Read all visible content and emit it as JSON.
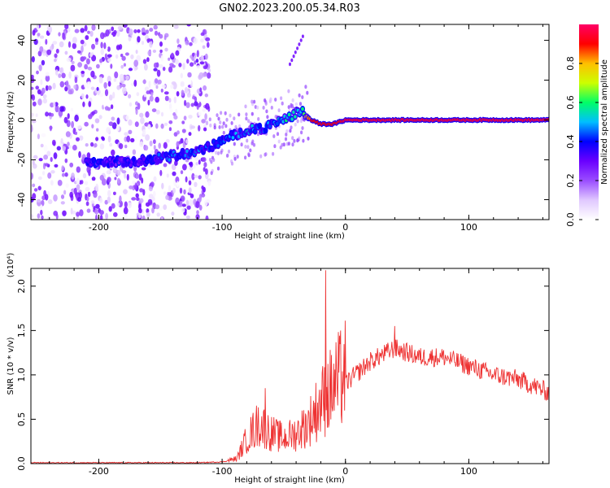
{
  "title": "GN02.2023.200.05.34.R03",
  "colors": {
    "snr_line": "#ee3333",
    "frame": "#000000",
    "colormap": [
      "#ffffff",
      "#e0c8ff",
      "#9a4dff",
      "#6a00ff",
      "#0000ff",
      "#00bfff",
      "#00ff66",
      "#ccff00",
      "#ffbf00",
      "#ff0000",
      "#ff0066"
    ]
  },
  "chart_data": [
    {
      "type": "heatmap",
      "name": "spectrogram",
      "xlabel": "Height of straight line (km)",
      "ylabel": "Frequency (Hz)",
      "xlim": [
        -255,
        165
      ],
      "ylim": [
        -50,
        48
      ],
      "xticks": [
        -200,
        -100,
        0,
        100
      ],
      "xtick_labels": [
        "-200",
        "-100",
        "0",
        "100"
      ],
      "yticks": [
        -40,
        -20,
        0,
        20,
        40
      ],
      "ytick_labels": [
        "-40",
        "-20",
        "0",
        "20",
        "40"
      ],
      "colorbar": {
        "label": "Normalized spectral amplitude",
        "range": [
          0,
          1
        ],
        "ticks": [
          0.0,
          0.2,
          0.4,
          0.6,
          0.8
        ],
        "tick_labels": [
          "0.0",
          "0.2",
          "0.4",
          "0.6",
          "0.8"
        ]
      },
      "ridge": {
        "x": [
          -200,
          -170,
          -140,
          -120,
          -105,
          -95,
          -80,
          -65,
          -50,
          -35,
          -28,
          -20,
          -10,
          0,
          50,
          100,
          165
        ],
        "y": [
          -21,
          -21,
          -18,
          -16,
          -12,
          -9,
          -5,
          -4,
          0,
          5,
          0,
          -2,
          -2,
          0,
          0,
          0,
          0
        ],
        "amplitude": [
          0.25,
          0.25,
          0.35,
          0.35,
          0.3,
          0.35,
          0.4,
          0.35,
          0.45,
          0.45,
          0.9,
          0.9,
          0.9,
          0.95,
          0.95,
          0.95,
          0.95
        ]
      },
      "noise_region_x": [
        -255,
        -110
      ]
    },
    {
      "type": "line",
      "name": "snr",
      "xlabel": "Height of straight line (km)",
      "ylabel": "SNR (10 * v/v)",
      "y_scale_label": "(x10⁴)",
      "xlim": [
        -255,
        165
      ],
      "ylim": [
        0,
        2.2
      ],
      "xticks": [
        -200,
        -100,
        0,
        100
      ],
      "xtick_labels": [
        "-200",
        "-100",
        "0",
        "100"
      ],
      "yticks": [
        0.0,
        0.5,
        1.0,
        1.5,
        2.0
      ],
      "ytick_labels": [
        "0.0",
        "0.5",
        "1.0",
        "1.5",
        "2.0"
      ],
      "envelope": {
        "x": [
          -255,
          -120,
          -100,
          -88,
          -80,
          -70,
          -60,
          -50,
          -40,
          -30,
          -20,
          -10,
          0,
          20,
          40,
          60,
          80,
          100,
          120,
          140,
          165
        ],
        "y": [
          0.01,
          0.01,
          0.02,
          0.05,
          0.25,
          0.4,
          0.3,
          0.25,
          0.3,
          0.4,
          0.6,
          0.75,
          0.9,
          1.15,
          1.3,
          1.2,
          1.2,
          1.1,
          1.0,
          0.95,
          0.8
        ]
      },
      "spikes": [
        {
          "x": -16,
          "y": 2.18
        },
        {
          "x": -65,
          "y": 0.85
        },
        {
          "x": 40,
          "y": 1.55
        }
      ]
    }
  ]
}
